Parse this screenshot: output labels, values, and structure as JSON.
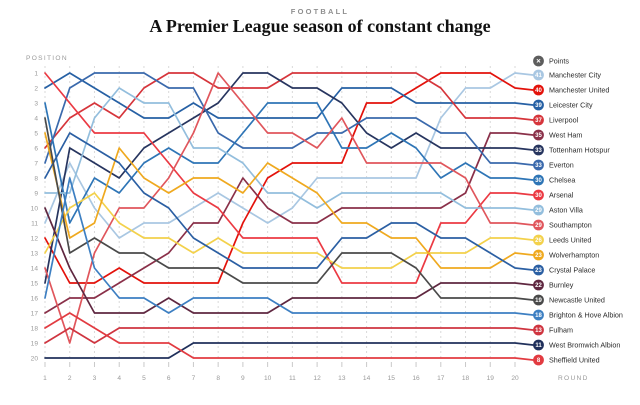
{
  "header": {
    "kicker": "FOOTBALL",
    "title": "A Premier League season of constant change"
  },
  "axes": {
    "y_title": "POSITION",
    "x_title": "ROUND",
    "positions": [
      1,
      2,
      3,
      4,
      5,
      6,
      7,
      8,
      9,
      10,
      11,
      12,
      13,
      14,
      15,
      16,
      17,
      18,
      19,
      20
    ],
    "rounds": [
      1,
      2,
      3,
      4,
      5,
      6,
      7,
      8,
      9,
      10,
      11,
      12,
      13,
      14,
      15,
      16,
      17,
      18,
      19,
      20
    ]
  },
  "legend_key": {
    "label": "Points",
    "symbol": "✕",
    "color": "#5d5d5d"
  },
  "colors": {
    "background": "#ffffff",
    "grid": "#d9d9d9",
    "tick": "#c9c9c9",
    "axis_text": "#9a9a9a",
    "kicker": "#8f8f8f",
    "title": "#111111",
    "badge_text": "#ffffff",
    "team_label": "#2b2b2b"
  },
  "chart_data": {
    "type": "line",
    "subtype": "bump-chart",
    "title": "A Premier League season of constant change",
    "xlabel": "ROUND",
    "ylabel": "POSITION",
    "x": [
      1,
      2,
      3,
      4,
      5,
      6,
      7,
      8,
      9,
      10,
      11,
      12,
      13,
      14,
      15,
      16,
      17,
      18,
      19,
      20
    ],
    "ylim": [
      1,
      20
    ],
    "y_inverted": true,
    "grid": "vertical-dashed",
    "legend_position": "right",
    "series": [
      {
        "name": "Manchester City",
        "points": 41,
        "color": "#a9c7e2",
        "positions": [
          11,
          7,
          10,
          12,
          11,
          11,
          10,
          9,
          10,
          11,
          10,
          8,
          8,
          8,
          8,
          8,
          4,
          2,
          2,
          1
        ]
      },
      {
        "name": "Manchester United",
        "points": 40,
        "color": "#e3120b",
        "positions": [
          12,
          15,
          15,
          14,
          15,
          15,
          15,
          15,
          11,
          8,
          7,
          7,
          7,
          3,
          3,
          2,
          1,
          1,
          1,
          2
        ]
      },
      {
        "name": "Leicester City",
        "points": 39,
        "color": "#2660a4",
        "positions": [
          2,
          1,
          2,
          3,
          4,
          4,
          3,
          4,
          4,
          4,
          4,
          4,
          2,
          2,
          2,
          3,
          3,
          3,
          3,
          3
        ]
      },
      {
        "name": "Liverpool",
        "points": 37,
        "color": "#d6353b",
        "positions": [
          6,
          4,
          3,
          4,
          2,
          1,
          1,
          2,
          2,
          2,
          1,
          1,
          1,
          1,
          1,
          1,
          2,
          4,
          4,
          4
        ]
      },
      {
        "name": "West Ham",
        "points": 35,
        "color": "#8a3049",
        "positions": [
          17,
          16,
          16,
          15,
          14,
          13,
          11,
          11,
          8,
          10,
          11,
          11,
          10,
          10,
          10,
          10,
          10,
          9,
          5,
          5
        ]
      },
      {
        "name": "Tottenham Hotspur",
        "points": 33,
        "color": "#27355f",
        "positions": [
          15,
          6,
          7,
          8,
          6,
          5,
          4,
          3,
          1,
          1,
          2,
          2,
          3,
          5,
          6,
          5,
          6,
          6,
          6,
          6
        ]
      },
      {
        "name": "Everton",
        "points": 33,
        "color": "#3a69ac",
        "positions": [
          7,
          2,
          1,
          1,
          1,
          2,
          2,
          5,
          6,
          6,
          6,
          5,
          5,
          4,
          4,
          4,
          5,
          5,
          7,
          7
        ]
      },
      {
        "name": "Chelsea",
        "points": 30,
        "color": "#2e75b6",
        "positions": [
          3,
          11,
          8,
          9,
          7,
          6,
          7,
          7,
          5,
          3,
          3,
          3,
          6,
          6,
          5,
          6,
          8,
          7,
          8,
          8
        ]
      },
      {
        "name": "Arsenal",
        "points": 30,
        "color": "#eb3a43",
        "positions": [
          1,
          3,
          5,
          5,
          5,
          7,
          9,
          10,
          12,
          12,
          12,
          12,
          15,
          15,
          15,
          15,
          11,
          11,
          9,
          9
        ]
      },
      {
        "name": "Aston Villa",
        "points": 29,
        "color": "#93bedd",
        "positions": [
          9,
          9,
          4,
          2,
          3,
          3,
          6,
          6,
          7,
          9,
          9,
          10,
          9,
          9,
          9,
          9,
          9,
          10,
          10,
          10
        ]
      },
      {
        "name": "Southampton",
        "points": 29,
        "color": "#e0565c",
        "positions": [
          14,
          19,
          13,
          10,
          10,
          8,
          5,
          1,
          3,
          5,
          5,
          6,
          4,
          7,
          7,
          7,
          7,
          8,
          11,
          11
        ]
      },
      {
        "name": "Leeds United",
        "points": 26,
        "color": "#f3d14b",
        "positions": [
          13,
          10,
          9,
          11,
          12,
          12,
          13,
          12,
          13,
          13,
          13,
          13,
          14,
          14,
          14,
          13,
          13,
          13,
          12,
          12
        ]
      },
      {
        "name": "Wolverhampton",
        "points": 23,
        "color": "#efa91f",
        "positions": [
          5,
          12,
          11,
          6,
          8,
          9,
          8,
          8,
          9,
          7,
          8,
          9,
          11,
          11,
          12,
          12,
          14,
          14,
          14,
          13
        ]
      },
      {
        "name": "Crystal Palace",
        "points": 23,
        "color": "#2b5fa3",
        "positions": [
          8,
          5,
          6,
          7,
          9,
          10,
          12,
          13,
          14,
          14,
          14,
          14,
          12,
          12,
          11,
          11,
          12,
          12,
          13,
          14
        ]
      },
      {
        "name": "Burnley",
        "points": 22,
        "color": "#5f2740",
        "positions": [
          10,
          14,
          17,
          17,
          17,
          16,
          17,
          17,
          17,
          17,
          16,
          16,
          16,
          16,
          16,
          16,
          15,
          15,
          15,
          15
        ]
      },
      {
        "name": "Newcastle United",
        "points": 19,
        "color": "#4a4a4a",
        "positions": [
          4,
          13,
          12,
          13,
          13,
          14,
          14,
          14,
          15,
          15,
          15,
          15,
          13,
          13,
          13,
          14,
          16,
          16,
          16,
          16
        ]
      },
      {
        "name": "Brighton & Hove Albion",
        "points": 18,
        "color": "#3d7fc2",
        "positions": [
          16,
          8,
          14,
          16,
          16,
          17,
          16,
          16,
          16,
          16,
          17,
          17,
          17,
          17,
          17,
          17,
          17,
          17,
          17,
          17
        ]
      },
      {
        "name": "Fulham",
        "points": 13,
        "color": "#cf3540",
        "positions": [
          19,
          18,
          19,
          18,
          18,
          18,
          18,
          18,
          18,
          18,
          18,
          18,
          18,
          18,
          18,
          18,
          18,
          18,
          18,
          18
        ]
      },
      {
        "name": "West Bromwich Albion",
        "points": 11,
        "color": "#20305b",
        "positions": [
          20,
          20,
          20,
          20,
          20,
          20,
          19,
          19,
          19,
          19,
          19,
          19,
          19,
          19,
          19,
          19,
          19,
          19,
          19,
          19
        ]
      },
      {
        "name": "Sheffield United",
        "points": 8,
        "color": "#e23b41",
        "positions": [
          18,
          17,
          18,
          19,
          19,
          19,
          20,
          20,
          20,
          20,
          20,
          20,
          20,
          20,
          20,
          20,
          20,
          20,
          20,
          20
        ]
      }
    ]
  }
}
